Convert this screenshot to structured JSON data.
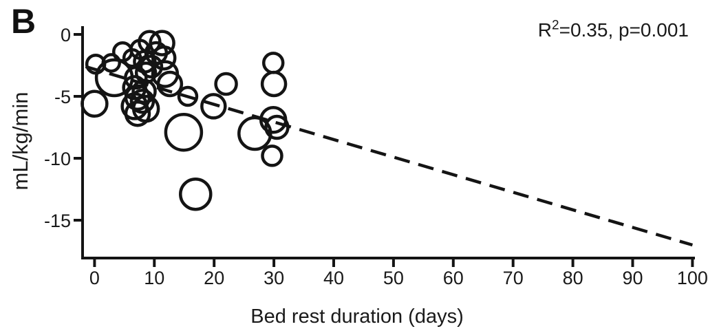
{
  "panel_label": "B",
  "annotation": {
    "r_base": "R",
    "r_exponent": "2",
    "value_text": "=0.35, p=0.001"
  },
  "chart_data": {
    "type": "scatter",
    "subtype": "bubble-open-circles",
    "title": "",
    "xlabel": "Bed rest duration (days)",
    "ylabel": "mL/kg/min",
    "xlim": [
      0,
      100
    ],
    "ylim": [
      -18,
      0.5
    ],
    "x_ticks": [
      0,
      10,
      20,
      30,
      40,
      50,
      60,
      70,
      80,
      90,
      100
    ],
    "y_ticks": [
      0,
      -5,
      -10,
      -15
    ],
    "grid": false,
    "legend": "none",
    "marker": "open circle, radius proportional to study weight",
    "colors": {
      "marker": "#141414",
      "trend": "#141414",
      "axis": "#141414",
      "background": "#ffffff"
    },
    "points": [
      {
        "x": 0.2,
        "y": -2.4,
        "size": 13
      },
      {
        "x": 0.0,
        "y": -5.6,
        "size": 18
      },
      {
        "x": 2.8,
        "y": -2.3,
        "size": 12
      },
      {
        "x": 3.3,
        "y": -3.5,
        "size": 26
      },
      {
        "x": 4.7,
        "y": -1.4,
        "size": 13
      },
      {
        "x": 6.3,
        "y": -1.9,
        "size": 12
      },
      {
        "x": 7.6,
        "y": -1.2,
        "size": 13
      },
      {
        "x": 9.2,
        "y": -0.6,
        "size": 15
      },
      {
        "x": 11.3,
        "y": -0.7,
        "size": 17
      },
      {
        "x": 10.3,
        "y": -1.5,
        "size": 15
      },
      {
        "x": 11.6,
        "y": -1.9,
        "size": 16
      },
      {
        "x": 8.4,
        "y": -2.2,
        "size": 15
      },
      {
        "x": 9.5,
        "y": -2.6,
        "size": 15
      },
      {
        "x": 11.8,
        "y": -3.2,
        "size": 18
      },
      {
        "x": 6.9,
        "y": -3.5,
        "size": 15
      },
      {
        "x": 8.6,
        "y": -3.1,
        "size": 14
      },
      {
        "x": 6.7,
        "y": -4.3,
        "size": 16
      },
      {
        "x": 12.6,
        "y": -4.0,
        "size": 17
      },
      {
        "x": 8.3,
        "y": -4.6,
        "size": 16
      },
      {
        "x": 7.2,
        "y": -5.1,
        "size": 17
      },
      {
        "x": 6.7,
        "y": -5.8,
        "size": 18
      },
      {
        "x": 8.0,
        "y": -5.4,
        "size": 16
      },
      {
        "x": 7.2,
        "y": -6.4,
        "size": 17
      },
      {
        "x": 8.6,
        "y": -6.0,
        "size": 18
      },
      {
        "x": 15.6,
        "y": -5.0,
        "size": 13
      },
      {
        "x": 19.9,
        "y": -5.8,
        "size": 17
      },
      {
        "x": 22.0,
        "y": -4.0,
        "size": 15
      },
      {
        "x": 14.9,
        "y": -7.9,
        "size": 26
      },
      {
        "x": 16.9,
        "y": -12.9,
        "size": 22
      },
      {
        "x": 26.8,
        "y": -8.0,
        "size": 23
      },
      {
        "x": 29.9,
        "y": -2.3,
        "size": 14
      },
      {
        "x": 30.0,
        "y": -4.0,
        "size": 17
      },
      {
        "x": 29.9,
        "y": -6.9,
        "size": 18
      },
      {
        "x": 30.5,
        "y": -7.5,
        "size": 16
      },
      {
        "x": 29.7,
        "y": -9.8,
        "size": 14
      }
    ],
    "trend_line": {
      "style": "dashed",
      "x_start": -1.5,
      "y_start": -2.6,
      "x_end": 100,
      "y_end": -17.0,
      "r_squared": 0.35,
      "p_value": 0.001
    }
  }
}
